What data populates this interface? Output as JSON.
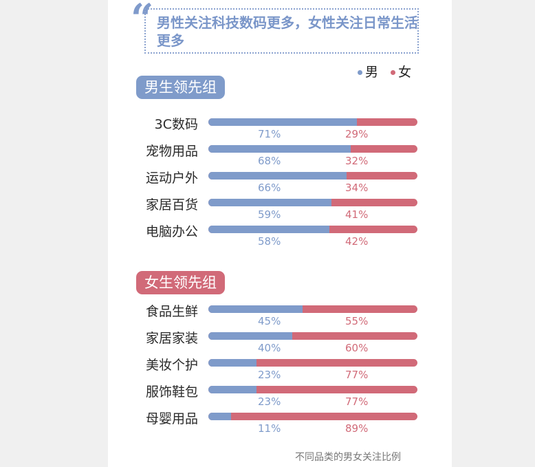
{
  "quote_mark": "“",
  "title": "男性关注科技数码更多，女性关注日常生活更多",
  "legend": [
    {
      "label": "男",
      "color": "#7f9bca"
    },
    {
      "label": "女",
      "color": "#d16a78"
    }
  ],
  "footnote": "不同品类的男女关注比例",
  "chart_data": {
    "type": "bar",
    "groups": [
      {
        "name": "男生领先组",
        "color": "#7f9bca",
        "categories": [
          "3C数码",
          "宠物用品",
          "运动户外",
          "家居百货",
          "电脑办公"
        ],
        "male": [
          71,
          68,
          66,
          59,
          58
        ],
        "female": [
          29,
          32,
          34,
          41,
          42
        ]
      },
      {
        "name": "女生领先组",
        "color": "#d16a78",
        "categories": [
          "食品生鲜",
          "家居家装",
          "美妆个护",
          "服饰鞋包",
          "母婴用品"
        ],
        "male": [
          45,
          40,
          23,
          23,
          11
        ],
        "female": [
          55,
          60,
          77,
          77,
          89
        ]
      }
    ],
    "series": [
      {
        "name": "男",
        "color": "#7f9bca"
      },
      {
        "name": "女",
        "color": "#d16a78"
      }
    ],
    "unit": "%"
  }
}
